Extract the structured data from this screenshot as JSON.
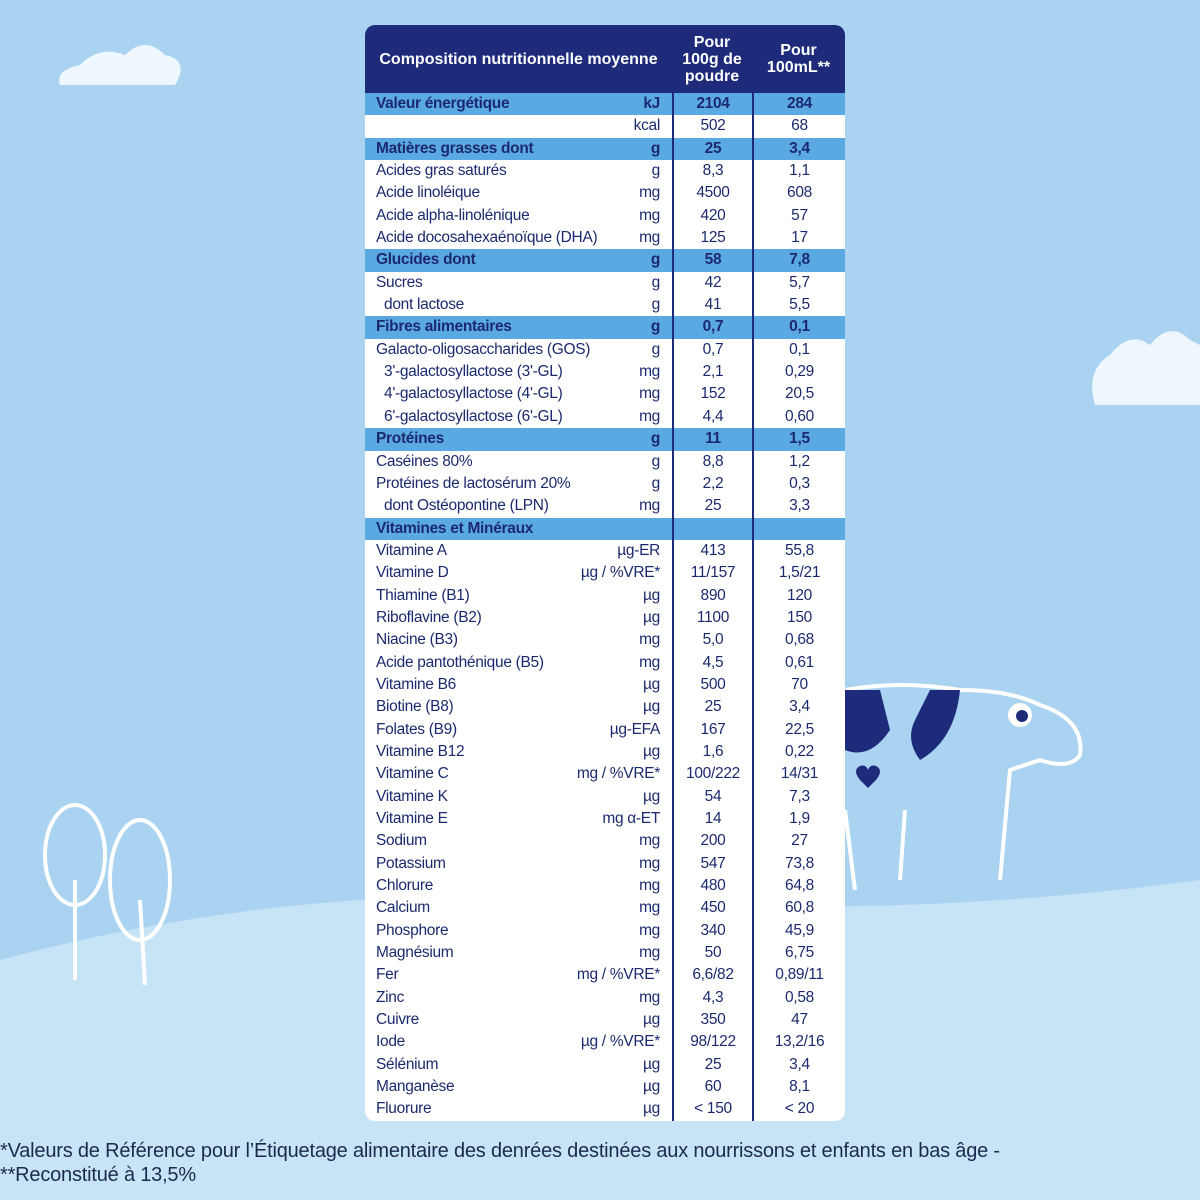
{
  "table": {
    "header": [
      "Composition nutritionnelle moyenne",
      "Pour 100g de poudre",
      "Pour 100mL**"
    ],
    "sections": [
      {
        "title": "Valeur énergétique",
        "unit": "kJ",
        "values": [
          "2104",
          "284"
        ],
        "rows": [
          {
            "unit": "kcal",
            "values": [
              "502",
              "68"
            ]
          }
        ]
      },
      {
        "title": "Matières grasses dont",
        "unit": "g",
        "values": [
          "25",
          "3,4"
        ],
        "rows": [
          {
            "label": "Acides gras saturés",
            "unit": "g",
            "values": [
              "8,3",
              "1,1"
            ]
          },
          {
            "label": "Acide linoléique",
            "unit": "mg",
            "values": [
              "4500",
              "608"
            ]
          },
          {
            "label": "Acide alpha-linolénique",
            "unit": "mg",
            "values": [
              "420",
              "57"
            ]
          },
          {
            "label": "Acide docosahexaénoïque (DHA)",
            "unit": "mg",
            "values": [
              "125",
              "17"
            ]
          }
        ]
      },
      {
        "title": "Glucides dont",
        "unit": "g",
        "values": [
          "58",
          "7,8"
        ],
        "rows": [
          {
            "label": "Sucres",
            "unit": "g",
            "values": [
              "42",
              "5,7"
            ],
            "sub": [
              {
                "label": "dont lactose",
                "unit": "g",
                "values": [
                  "41",
                  "5,5"
                ]
              }
            ]
          }
        ]
      },
      {
        "title": "Fibres alimentaires",
        "unit": "g",
        "values": [
          "0,7",
          "0,1"
        ],
        "rows": [
          {
            "label": "Galacto-oligosaccharides (GOS)",
            "unit": "g",
            "values": [
              "0,7",
              "0,1"
            ],
            "sub": [
              {
                "label": "3'-galactosyllactose (3'-GL)",
                "unit": "mg",
                "values": [
                  "2,1",
                  "0,29"
                ]
              },
              {
                "label": "4'-galactosyllactose (4'-GL)",
                "unit": "mg",
                "values": [
                  "152",
                  "20,5"
                ]
              },
              {
                "label": "6'-galactosyllactose (6'-GL)",
                "unit": "mg",
                "values": [
                  "4,4",
                  "0,60"
                ]
              }
            ]
          }
        ]
      },
      {
        "title": "Protéines",
        "unit": "g",
        "values": [
          "11",
          "1,5"
        ],
        "rows": [
          {
            "label": "Caséines 80%",
            "unit": "g",
            "values": [
              "8,8",
              "1,2"
            ]
          },
          {
            "label": "Protéines de lactosérum 20%",
            "unit": "g",
            "values": [
              "2,2",
              "0,3"
            ],
            "sub": [
              {
                "label": "dont Ostéopontine (LPN)",
                "unit": "mg",
                "values": [
                  "25",
                  "3,3"
                ]
              }
            ]
          }
        ]
      },
      {
        "title": "Vitamines et Minéraux",
        "rows": [
          {
            "label": "Vitamine A",
            "unit": "µg-ER",
            "values": [
              "413",
              "55,8"
            ]
          },
          {
            "label": "Vitamine D",
            "unit": "µg / %VRE*",
            "values": [
              "11/157",
              "1,5/21"
            ]
          },
          {
            "label": "Thiamine (B1)",
            "unit": "µg",
            "values": [
              "890",
              "120"
            ]
          },
          {
            "label": "Riboflavine (B2)",
            "unit": "µg",
            "values": [
              "1100",
              "150"
            ]
          },
          {
            "label": "Niacine (B3)",
            "unit": "mg",
            "values": [
              "5,0",
              "0,68"
            ]
          },
          {
            "label": "Acide pantothénique (B5)",
            "unit": "mg",
            "values": [
              "4,5",
              "0,61"
            ]
          },
          {
            "label": "Vitamine B6",
            "unit": "µg",
            "values": [
              "500",
              "70"
            ]
          },
          {
            "label": "Biotine (B8)",
            "unit": "µg",
            "values": [
              "25",
              "3,4"
            ]
          },
          {
            "label": "Folates (B9)",
            "unit": "µg-EFA",
            "values": [
              "167",
              "22,5"
            ]
          },
          {
            "label": "Vitamine B12",
            "unit": "µg",
            "values": [
              "1,6",
              "0,22"
            ]
          },
          {
            "label": "Vitamine C",
            "unit": "mg / %VRE*",
            "values": [
              "100/222",
              "14/31"
            ]
          },
          {
            "label": "Vitamine K",
            "unit": "µg",
            "values": [
              "54",
              "7,3"
            ]
          },
          {
            "label": "Vitamine E",
            "unit": "mg α-ET",
            "values": [
              "14",
              "1,9"
            ]
          },
          {
            "label": "Sodium",
            "unit": "mg",
            "values": [
              "200",
              "27"
            ]
          },
          {
            "label": "Potassium",
            "unit": "mg",
            "values": [
              "547",
              "73,8"
            ]
          },
          {
            "label": "Chlorure",
            "unit": "mg",
            "values": [
              "480",
              "64,8"
            ]
          },
          {
            "label": "Calcium",
            "unit": "mg",
            "values": [
              "450",
              "60,8"
            ]
          },
          {
            "label": "Phosphore",
            "unit": "mg",
            "values": [
              "340",
              "45,9"
            ]
          },
          {
            "label": "Magnésium",
            "unit": "mg",
            "values": [
              "50",
              "6,75"
            ]
          },
          {
            "label": "Fer",
            "unit": "mg / %VRE*",
            "values": [
              "6,6/82",
              "0,89/11"
            ]
          },
          {
            "label": "Zinc",
            "unit": "mg",
            "values": [
              "4,3",
              "0,58"
            ]
          },
          {
            "label": "Cuivre",
            "unit": "µg",
            "values": [
              "350",
              "47"
            ]
          },
          {
            "label": "Iode",
            "unit": "µg / %VRE*",
            "values": [
              "98/122",
              "13,2/16"
            ]
          },
          {
            "label": "Sélénium",
            "unit": "µg",
            "values": [
              "25",
              "3,4"
            ]
          },
          {
            "label": "Manganèse",
            "unit": "µg",
            "values": [
              "60",
              "8,1"
            ]
          },
          {
            "label": "Fluorure",
            "unit": "µg",
            "values": [
              "< 150",
              "< 20"
            ]
          }
        ]
      }
    ]
  },
  "footnotes": [
    "*Valeurs de Référence pour l’Étiquetage alimentaire des denrées destinées aux nourrissons et enfants en bas âge -",
    "**Reconstitué à 13,5%"
  ]
}
